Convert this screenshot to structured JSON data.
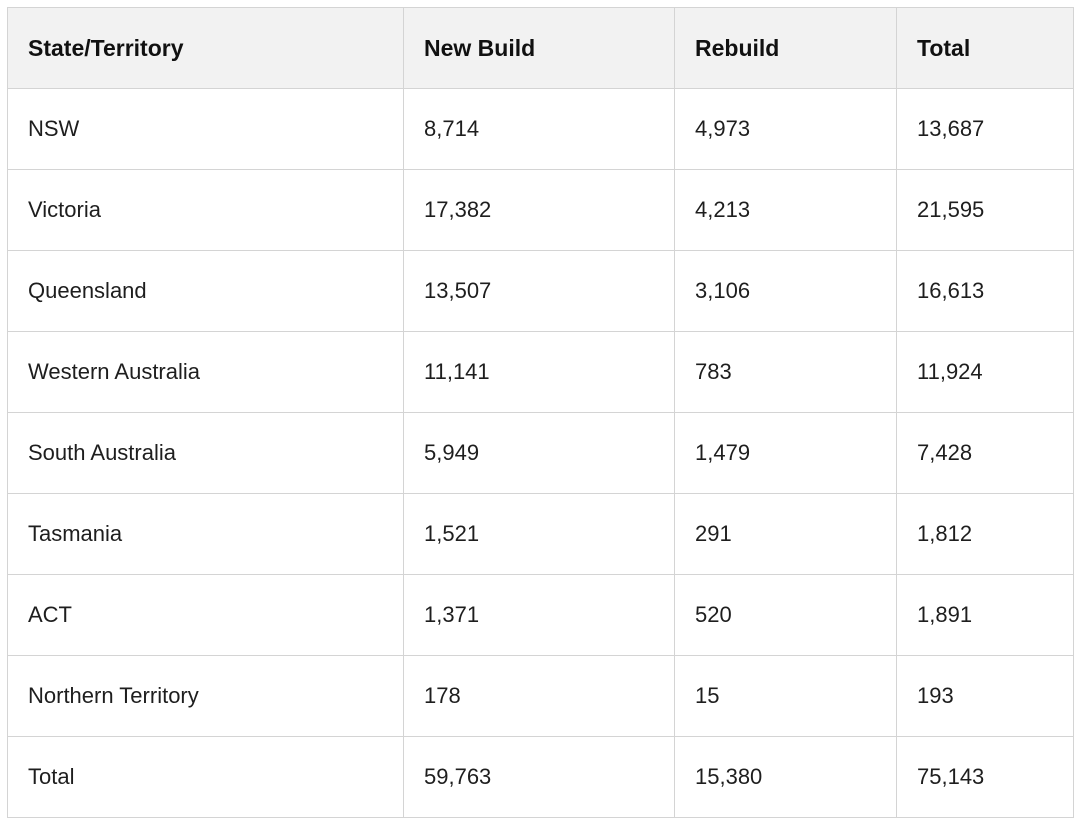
{
  "table": {
    "headers": [
      "State/Territory",
      "New Build",
      "Rebuild",
      "Total"
    ],
    "rows": [
      [
        "NSW",
        "8,714",
        "4,973",
        "13,687"
      ],
      [
        "Victoria",
        "17,382",
        "4,213",
        "21,595"
      ],
      [
        "Queensland",
        "13,507",
        "3,106",
        "16,613"
      ],
      [
        "Western Australia",
        "11,141",
        "783",
        "11,924"
      ],
      [
        "South Australia",
        "5,949",
        "1,479",
        "7,428"
      ],
      [
        "Tasmania",
        "1,521",
        "291",
        "1,812"
      ],
      [
        "ACT",
        "1,371",
        "520",
        "1,891"
      ],
      [
        "Northern Territory",
        "178",
        "15",
        "193"
      ],
      [
        "Total",
        "59,763",
        "15,380",
        "75,143"
      ]
    ]
  },
  "colors": {
    "header_bg": "#f2f2f2",
    "border": "#d4d4d4",
    "text": "#1e1e1e"
  }
}
